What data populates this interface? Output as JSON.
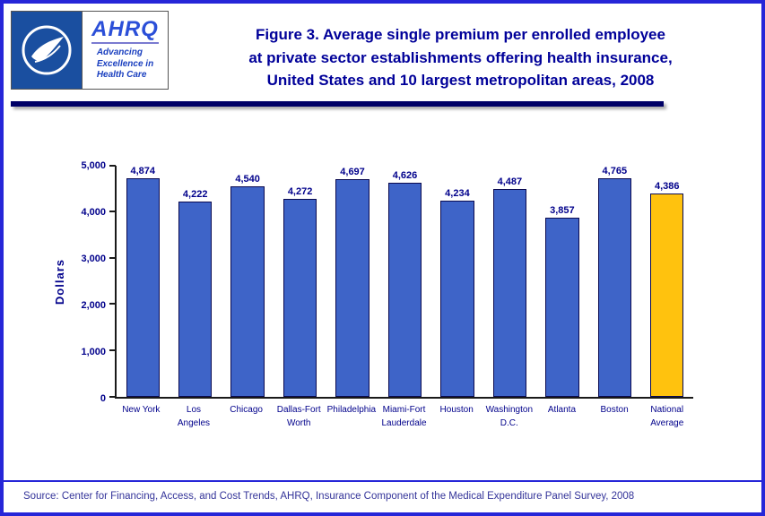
{
  "header": {
    "title_lines": [
      "Figure 3. Average single premium per enrolled employee",
      "at private sector establishments offering health insurance,",
      "United States and 10 largest metropolitan areas, 2008"
    ],
    "logo": {
      "hhs_seal_name": "hhs-seal",
      "ahrq_acronym": "AHRQ",
      "ahrq_tagline_lines": [
        "Advancing",
        "Excellence in",
        "Health Care"
      ]
    }
  },
  "chart_data": {
    "type": "bar",
    "title": "Figure 3. Average single premium per enrolled employee at private sector establishments offering health insurance, United States and 10 largest metropolitan areas, 2008",
    "xlabel": "",
    "ylabel": "Dollars",
    "ylim": [
      0,
      5000
    ],
    "yticks": [
      0,
      1000,
      2000,
      3000,
      4000,
      5000
    ],
    "ytick_labels": [
      "0",
      "1,000",
      "2,000",
      "3,000",
      "4,000",
      "5,000"
    ],
    "categories": [
      "New York",
      "Los Angeles",
      "Chicago",
      "Dallas-Fort Worth",
      "Philadelphia",
      "Miami-Fort Lauderdale",
      "Houston",
      "Washington D.C.",
      "Atlanta",
      "Boston",
      "National Average"
    ],
    "category_label_lines": [
      [
        "New York"
      ],
      [
        "Los",
        "Angeles"
      ],
      [
        "Chicago"
      ],
      [
        "Dallas-Fort",
        "Worth"
      ],
      [
        "Philadelphia"
      ],
      [
        "Miami-Fort",
        "Lauderdale"
      ],
      [
        "Houston"
      ],
      [
        "Washington",
        "D.C."
      ],
      [
        "Atlanta"
      ],
      [
        "Boston"
      ],
      [
        "National",
        "Average"
      ]
    ],
    "values": [
      4874,
      4222,
      4540,
      4272,
      4697,
      4626,
      4234,
      4487,
      3857,
      4765,
      4386
    ],
    "value_labels": [
      "4,874",
      "4,222",
      "4,540",
      "4,272",
      "4,697",
      "4,626",
      "4,234",
      "4,487",
      "3,857",
      "4,765",
      "4,386"
    ],
    "bar_colors": {
      "default": "#3E64C8",
      "highlight": "#FFC20E"
    },
    "highlight_index": 10,
    "grid": false,
    "legend": null
  },
  "footer": {
    "source": "Source: Center for Financing, Access, and Cost Trends, AHRQ, Insurance Component of the Medical Expenditure Panel Survey, 2008"
  }
}
